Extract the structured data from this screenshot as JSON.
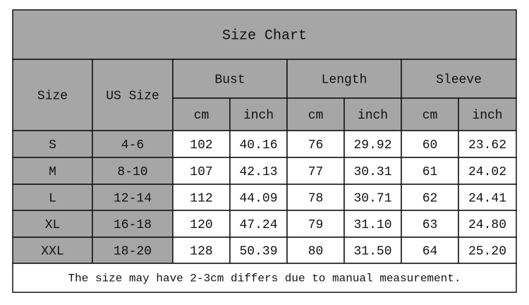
{
  "title": "Size Chart",
  "header": {
    "size": "Size",
    "us_size": "US Size",
    "groups": [
      "Bust",
      "Length",
      "Sleeve"
    ],
    "units": [
      "cm",
      "inch",
      "cm",
      "inch",
      "cm",
      "inch"
    ]
  },
  "rows": [
    [
      "S",
      "4-6",
      "102",
      "40.16",
      "76",
      "29.92",
      "60",
      "23.62"
    ],
    [
      "M",
      "8-10",
      "107",
      "42.13",
      "77",
      "30.31",
      "61",
      "24.02"
    ],
    [
      "L",
      "12-14",
      "112",
      "44.09",
      "78",
      "30.71",
      "62",
      "24.41"
    ],
    [
      "XL",
      "16-18",
      "120",
      "47.24",
      "79",
      "31.10",
      "63",
      "24.80"
    ],
    [
      "XXL",
      "18-20",
      "128",
      "50.39",
      "80",
      "31.50",
      "64",
      "25.20"
    ]
  ],
  "note": "The size may have 2-3cm differs due to manual measurement."
}
